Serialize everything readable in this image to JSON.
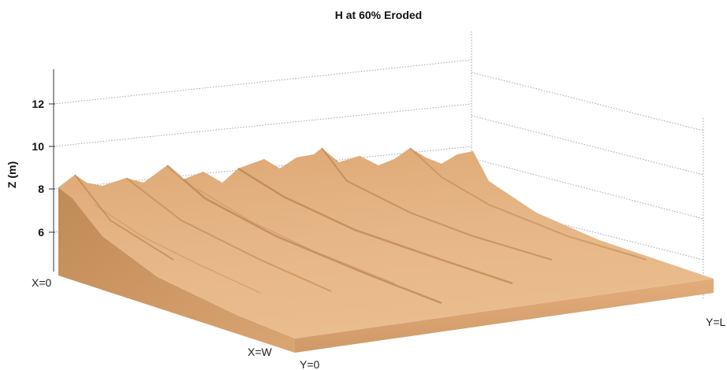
{
  "chart_data": {
    "type": "surface",
    "title": "H at 60% Eroded",
    "zlabel": "Z (m)",
    "z_ticks": [
      6,
      8,
      10,
      12
    ],
    "z_range": [
      4,
      14
    ],
    "corner_labels": {
      "x_start": "X=0",
      "x_end": "X=W",
      "y_start": "Y=0",
      "y_end": "Y=L"
    },
    "grid": true,
    "colors": {
      "surface_light": "#e8b98a",
      "surface_mid": "#d7a06e",
      "surface_dark": "#b9844f",
      "side_face": "#c89563"
    }
  }
}
